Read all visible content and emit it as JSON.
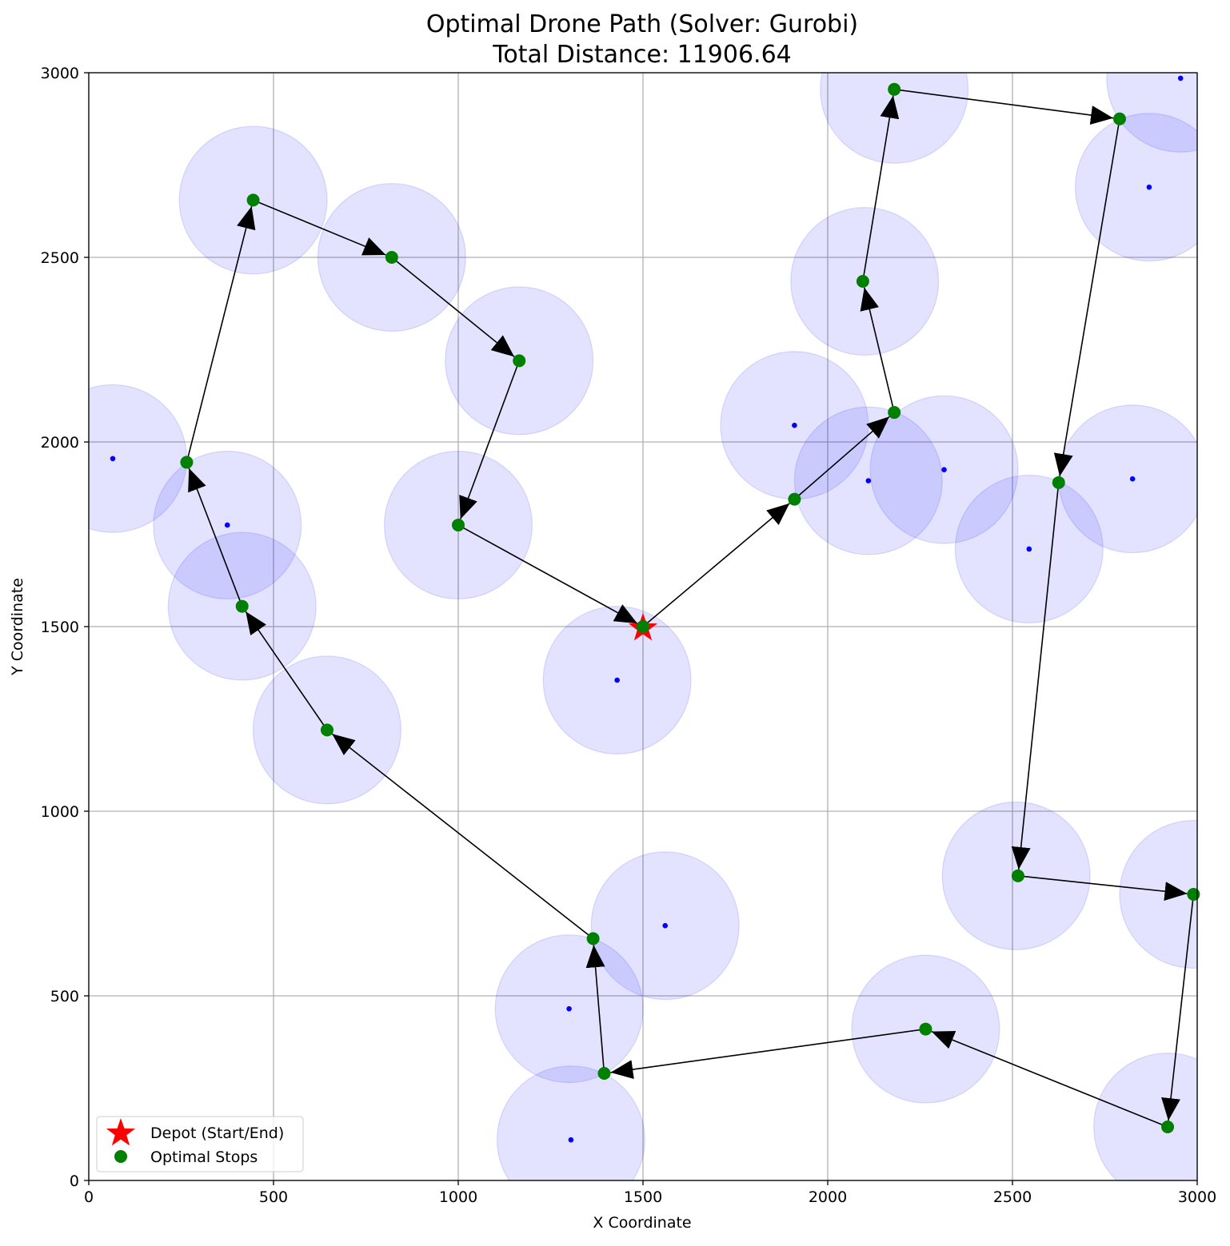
{
  "chart_data": {
    "type": "scatter",
    "title": "Optimal Drone Path (Solver: Gurobi)",
    "subtitle": "Total Distance: 11906.64",
    "xlabel": "X Coordinate",
    "ylabel": "Y Coordinate",
    "xlim": [
      0,
      3000
    ],
    "ylim": [
      0,
      3000
    ],
    "xticks": [
      0,
      500,
      1000,
      1500,
      2000,
      2500,
      3000
    ],
    "yticks": [
      0,
      500,
      1000,
      1500,
      2000,
      2500,
      3000
    ],
    "grid": true,
    "legend_position": "lower-left",
    "legend": [
      {
        "label": "Depot (Start/End)",
        "marker": "star",
        "color": "#ff0000"
      },
      {
        "label": "Optimal Stops",
        "marker": "circle",
        "color": "#008000"
      }
    ],
    "coverage_radius": 200,
    "targets": [
      [
        65,
        1955
      ],
      [
        375,
        1775
      ],
      [
        415,
        1555
      ],
      [
        645,
        1220
      ],
      [
        445,
        2655
      ],
      [
        820,
        2500
      ],
      [
        1165,
        2220
      ],
      [
        1000,
        1775
      ],
      [
        1430,
        1355
      ],
      [
        1300,
        465
      ],
      [
        1305,
        110
      ],
      [
        1560,
        690
      ],
      [
        1910,
        2045
      ],
      [
        2110,
        1895
      ],
      [
        2315,
        1925
      ],
      [
        2100,
        2435
      ],
      [
        2180,
        2955
      ],
      [
        2870,
        2690
      ],
      [
        2955,
        2985
      ],
      [
        2825,
        1900
      ],
      [
        2545,
        1710
      ],
      [
        2510,
        825
      ],
      [
        2990,
        775
      ],
      [
        2920,
        145
      ],
      [
        2265,
        410
      ]
    ],
    "depot": [
      1500,
      1500
    ],
    "route": [
      [
        1500,
        1500
      ],
      [
        1910,
        1845
      ],
      [
        2180,
        2080
      ],
      [
        2095,
        2435
      ],
      [
        2180,
        2955
      ],
      [
        2790,
        2875
      ],
      [
        2625,
        1890
      ],
      [
        2515,
        825
      ],
      [
        2990,
        775
      ],
      [
        2920,
        145
      ],
      [
        2265,
        410
      ],
      [
        1395,
        290
      ],
      [
        1365,
        655
      ],
      [
        645,
        1220
      ],
      [
        415,
        1555
      ],
      [
        265,
        1945
      ],
      [
        445,
        2655
      ],
      [
        820,
        2500
      ],
      [
        1165,
        2220
      ],
      [
        1000,
        1775
      ],
      [
        1500,
        1500
      ]
    ],
    "colors": {
      "circle_fill": "#e0e0ff",
      "circle_stroke": "#c8c8f5",
      "target_point": "#0000ff",
      "stop": "#008000",
      "depot": "#ff0000",
      "arrow": "#000000",
      "grid": "#b0b0b0"
    }
  }
}
